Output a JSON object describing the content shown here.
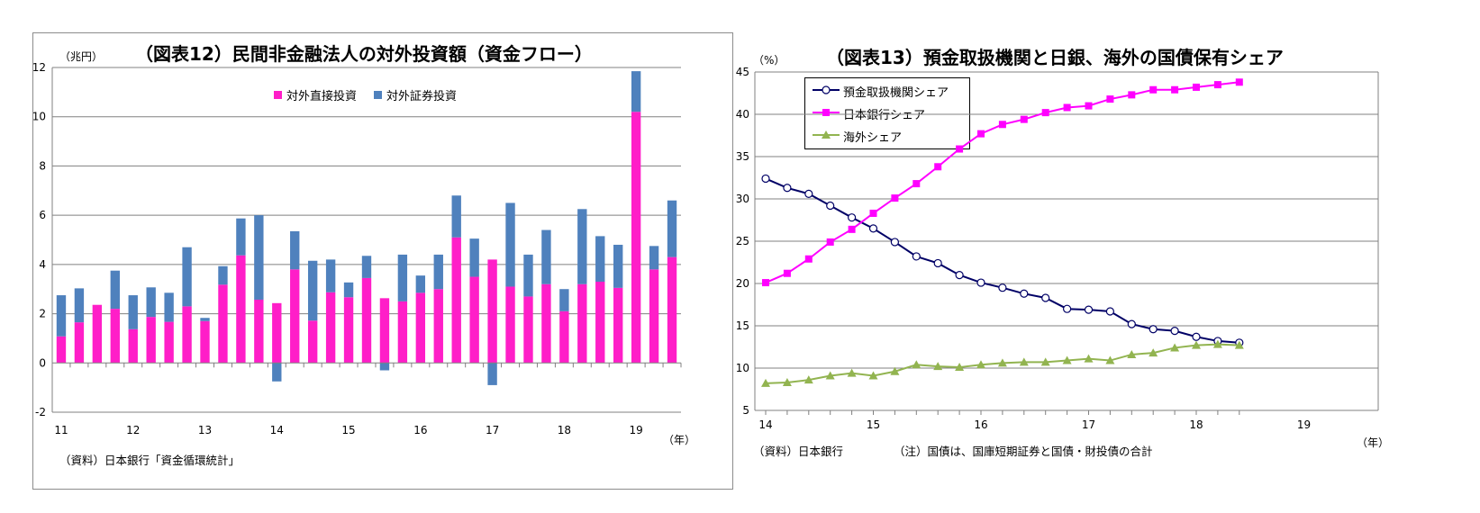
{
  "chart_data": [
    {
      "type": "bar",
      "stacked": true,
      "title": "（図表12）民間非金融法人の対外投資額（資金フロー）",
      "ylabel": "（兆円）",
      "xlabel": "（年）",
      "source": "（資料）日本銀行「資金循環統計」",
      "ylim": [
        -2,
        12
      ],
      "yticks": [
        -2,
        0,
        2,
        4,
        6,
        8,
        10,
        12
      ],
      "year_labels": [
        {
          "label": "11",
          "index": 0
        },
        {
          "label": "12",
          "index": 4
        },
        {
          "label": "13",
          "index": 8
        },
        {
          "label": "14",
          "index": 12
        },
        {
          "label": "15",
          "index": 16
        },
        {
          "label": "16",
          "index": 20
        },
        {
          "label": "17",
          "index": 24
        },
        {
          "label": "18",
          "index": 28
        },
        {
          "label": "19",
          "index": 32
        }
      ],
      "legend_position": "top-center",
      "series": [
        {
          "name": "対外直接投資",
          "color": "#ff1ec8",
          "values": [
            1.08,
            1.65,
            2.36,
            2.2,
            1.37,
            1.87,
            1.67,
            2.3,
            1.7,
            3.18,
            4.37,
            2.57,
            2.43,
            3.8,
            1.72,
            2.87,
            2.67,
            3.45,
            2.63,
            2.5,
            2.85,
            3.0,
            5.1,
            3.5,
            4.2,
            3.1,
            2.7,
            3.2,
            2.1,
            3.2,
            3.3,
            3.05,
            10.2,
            3.8,
            4.3
          ]
        },
        {
          "name": "対外証券投資",
          "color": "#4f81bd",
          "values": [
            1.67,
            1.38,
            0.0,
            1.55,
            1.38,
            1.2,
            1.18,
            2.4,
            0.13,
            0.75,
            1.5,
            3.43,
            -0.75,
            1.55,
            2.43,
            1.33,
            0.6,
            0.9,
            -0.3,
            1.9,
            0.7,
            1.4,
            1.7,
            1.55,
            -0.9,
            3.4,
            1.7,
            2.2,
            0.9,
            3.05,
            1.85,
            1.75,
            1.65,
            0.95,
            2.3
          ]
        }
      ]
    },
    {
      "type": "line",
      "title": "（図表13）預金取扱機関と日銀、海外の国債保有シェア",
      "ylabel": "（%）",
      "xlabel": "（年）",
      "source": "（資料）日本銀行",
      "note": "（注）国債は、国庫短期証券と国債・財投債の合計",
      "ylim": [
        5,
        45
      ],
      "yticks": [
        5,
        10,
        15,
        20,
        25,
        30,
        35,
        40,
        45
      ],
      "year_labels": [
        {
          "label": "14",
          "index": 0
        },
        {
          "label": "15",
          "index": 5
        },
        {
          "label": "16",
          "index": 10
        },
        {
          "label": "17",
          "index": 15
        },
        {
          "label": "18",
          "index": 20
        },
        {
          "label": "19",
          "index": 25
        }
      ],
      "legend_position": "top-left",
      "series": [
        {
          "name": "預金取扱機関シェア",
          "color": "#000066",
          "marker": "circle",
          "values": [
            32.4,
            31.3,
            30.6,
            29.2,
            27.8,
            26.5,
            24.9,
            23.2,
            22.4,
            21.0,
            20.1,
            19.5,
            18.8,
            18.3,
            17.0,
            16.9,
            16.7,
            15.2,
            14.6,
            14.4,
            13.7,
            13.2,
            13.0
          ]
        },
        {
          "name": "日本銀行シェア",
          "color": "#ff00ff",
          "marker": "square",
          "values": [
            20.1,
            21.2,
            22.9,
            24.9,
            26.4,
            28.3,
            30.1,
            31.8,
            33.8,
            35.9,
            37.7,
            38.8,
            39.4,
            40.2,
            40.8,
            41.0,
            41.8,
            42.3,
            42.9,
            42.9,
            43.2,
            43.5,
            43.8
          ]
        },
        {
          "name": "海外シェア",
          "color": "#92b450",
          "marker": "triangle",
          "values": [
            8.2,
            8.3,
            8.6,
            9.1,
            9.4,
            9.1,
            9.6,
            10.4,
            10.2,
            10.1,
            10.4,
            10.6,
            10.7,
            10.7,
            10.9,
            11.1,
            10.9,
            11.6,
            11.8,
            12.4,
            12.7,
            12.8,
            12.7
          ]
        }
      ]
    }
  ]
}
